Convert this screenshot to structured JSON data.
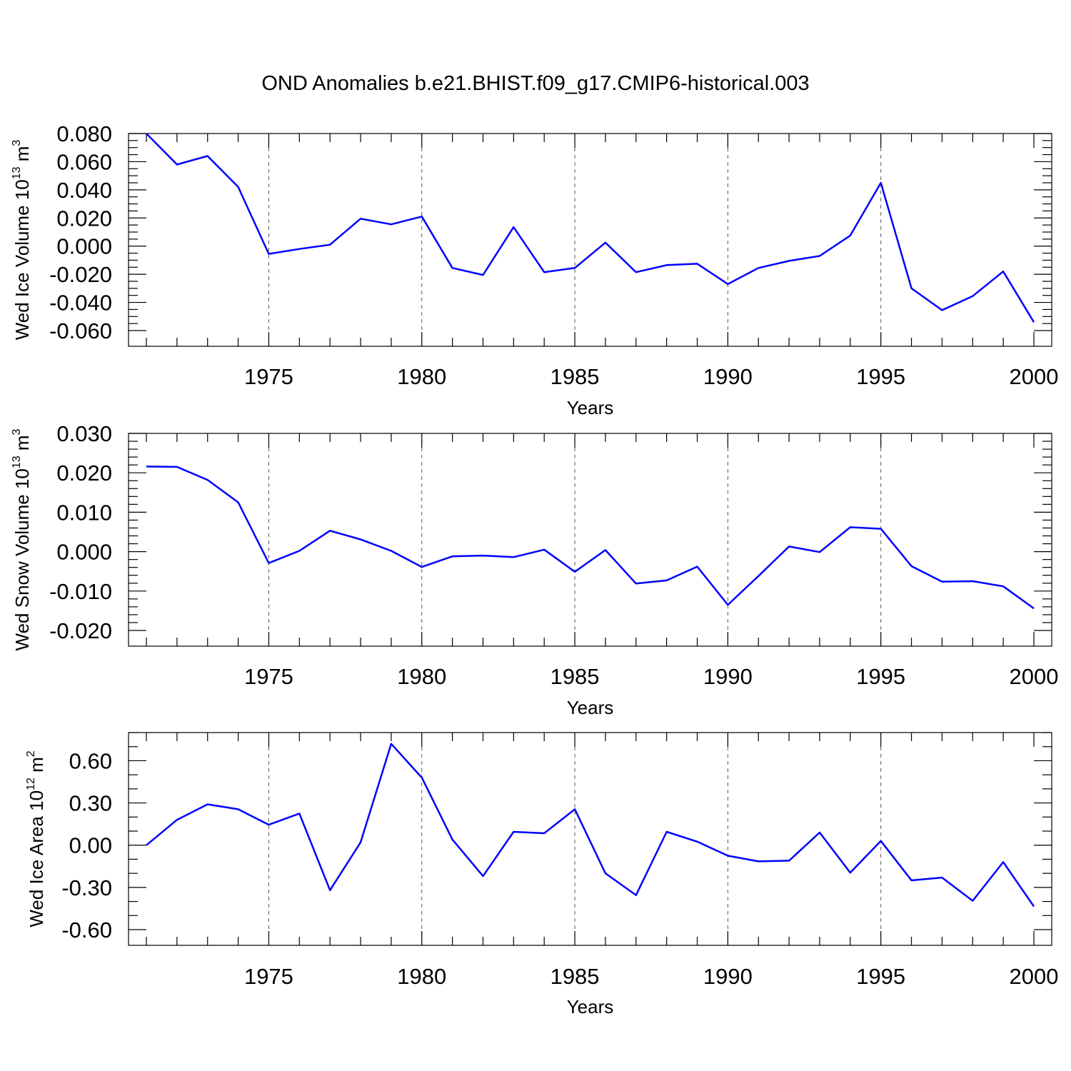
{
  "figure": {
    "title": "OND Anomalies b.e21.BHIST.f09_g17.CMIP6-historical.003",
    "line_color": "#0000ff"
  },
  "chart_data": [
    {
      "type": "line",
      "title": "",
      "xlabel": "Years",
      "ylabel": {
        "main": "Wed Ice Volume 10",
        "exp": "13",
        "unit": " m",
        "unit_exp": "3"
      },
      "xlim": [
        1971,
        2000
      ],
      "ylim": [
        -0.06,
        0.08
      ],
      "xticks": [
        1975,
        1980,
        1985,
        1990,
        1995,
        2000
      ],
      "yticks": [
        -0.06,
        -0.04,
        -0.02,
        0.0,
        0.02,
        0.04,
        0.06,
        0.08
      ],
      "ytick_labels": [
        "-0.060",
        "-0.040",
        "-0.020",
        "0.000",
        "0.020",
        "0.040",
        "0.060",
        "0.080"
      ],
      "yminor": 0.005,
      "grid": "vertical dashed at major x ticks",
      "x": [
        1971,
        1972,
        1973,
        1974,
        1975,
        1976,
        1977,
        1978,
        1979,
        1980,
        1981,
        1982,
        1983,
        1984,
        1985,
        1986,
        1987,
        1988,
        1989,
        1990,
        1991,
        1992,
        1993,
        1994,
        1995,
        1996,
        1997,
        1998,
        1999,
        2000
      ],
      "series": [
        {
          "values": [
            0.08,
            0.058,
            0.064,
            0.042,
            -0.0055,
            -0.002,
            0.001,
            0.0195,
            0.0155,
            0.021,
            -0.0155,
            -0.0205,
            0.0135,
            -0.0185,
            -0.0155,
            0.0025,
            -0.0185,
            -0.0135,
            -0.0125,
            -0.027,
            -0.0155,
            -0.0105,
            -0.007,
            0.0075,
            0.045,
            -0.03,
            -0.0455,
            -0.0355,
            -0.018,
            -0.054
          ]
        }
      ]
    },
    {
      "type": "line",
      "title": "",
      "xlabel": "Years",
      "ylabel": {
        "main": "Wed Snow Volume 10",
        "exp": "13",
        "unit": " m",
        "unit_exp": "3"
      },
      "xlim": [
        1971,
        2000
      ],
      "ylim": [
        -0.02,
        0.03
      ],
      "xticks": [
        1975,
        1980,
        1985,
        1990,
        1995,
        2000
      ],
      "yticks": [
        -0.02,
        -0.01,
        0.0,
        0.01,
        0.02,
        0.03
      ],
      "ytick_labels": [
        "-0.020",
        "-0.010",
        "0.000",
        "0.010",
        "0.020",
        "0.030"
      ],
      "yminor": 0.002,
      "grid": "vertical dashed at major x ticks",
      "x": [
        1971,
        1972,
        1973,
        1974,
        1975,
        1976,
        1977,
        1978,
        1979,
        1980,
        1981,
        1982,
        1983,
        1984,
        1985,
        1986,
        1987,
        1988,
        1989,
        1990,
        1991,
        1992,
        1993,
        1994,
        1995,
        1996,
        1997,
        1998,
        1999,
        2000
      ],
      "series": [
        {
          "values": [
            0.0216,
            0.0215,
            0.0182,
            0.0125,
            -0.0029,
            0.0002,
            0.0053,
            0.0031,
            0.0002,
            -0.0039,
            -0.0012,
            -0.001,
            -0.0014,
            0.0005,
            -0.0051,
            0.0004,
            -0.0081,
            -0.0073,
            -0.0038,
            -0.0135,
            -0.0062,
            0.0013,
            -0.0001,
            0.0062,
            0.0058,
            -0.0037,
            -0.0076,
            -0.0075,
            -0.0088,
            -0.0144
          ]
        }
      ]
    },
    {
      "type": "line",
      "title": "",
      "xlabel": "Years",
      "ylabel": {
        "main": "Wed Ice Area 10",
        "exp": "12",
        "unit": " m",
        "unit_exp": "2"
      },
      "xlim": [
        1971,
        2000
      ],
      "ylim": [
        -0.6,
        0.8
      ],
      "xticks": [
        1975,
        1980,
        1985,
        1990,
        1995,
        2000
      ],
      "yticks": [
        -0.6,
        -0.3,
        0.0,
        0.3,
        0.6
      ],
      "ytick_labels": [
        "-0.60",
        "-0.30",
        "0.00",
        "0.30",
        "0.60"
      ],
      "yminor": 0.1,
      "grid": "vertical dashed at major x ticks",
      "x": [
        1971,
        1972,
        1973,
        1974,
        1975,
        1976,
        1977,
        1978,
        1979,
        1980,
        1981,
        1982,
        1983,
        1984,
        1985,
        1986,
        1987,
        1988,
        1989,
        1990,
        1991,
        1992,
        1993,
        1994,
        1995,
        1996,
        1997,
        1998,
        1999,
        2000
      ],
      "series": [
        {
          "values": [
            0.0,
            0.18,
            0.29,
            0.255,
            0.145,
            0.225,
            -0.32,
            0.02,
            0.72,
            0.48,
            0.04,
            -0.22,
            0.095,
            0.085,
            0.255,
            -0.2,
            -0.355,
            0.095,
            0.025,
            -0.075,
            -0.115,
            -0.11,
            0.09,
            -0.195,
            0.03,
            -0.25,
            -0.23,
            -0.395,
            -0.12,
            -0.435
          ]
        }
      ]
    }
  ]
}
